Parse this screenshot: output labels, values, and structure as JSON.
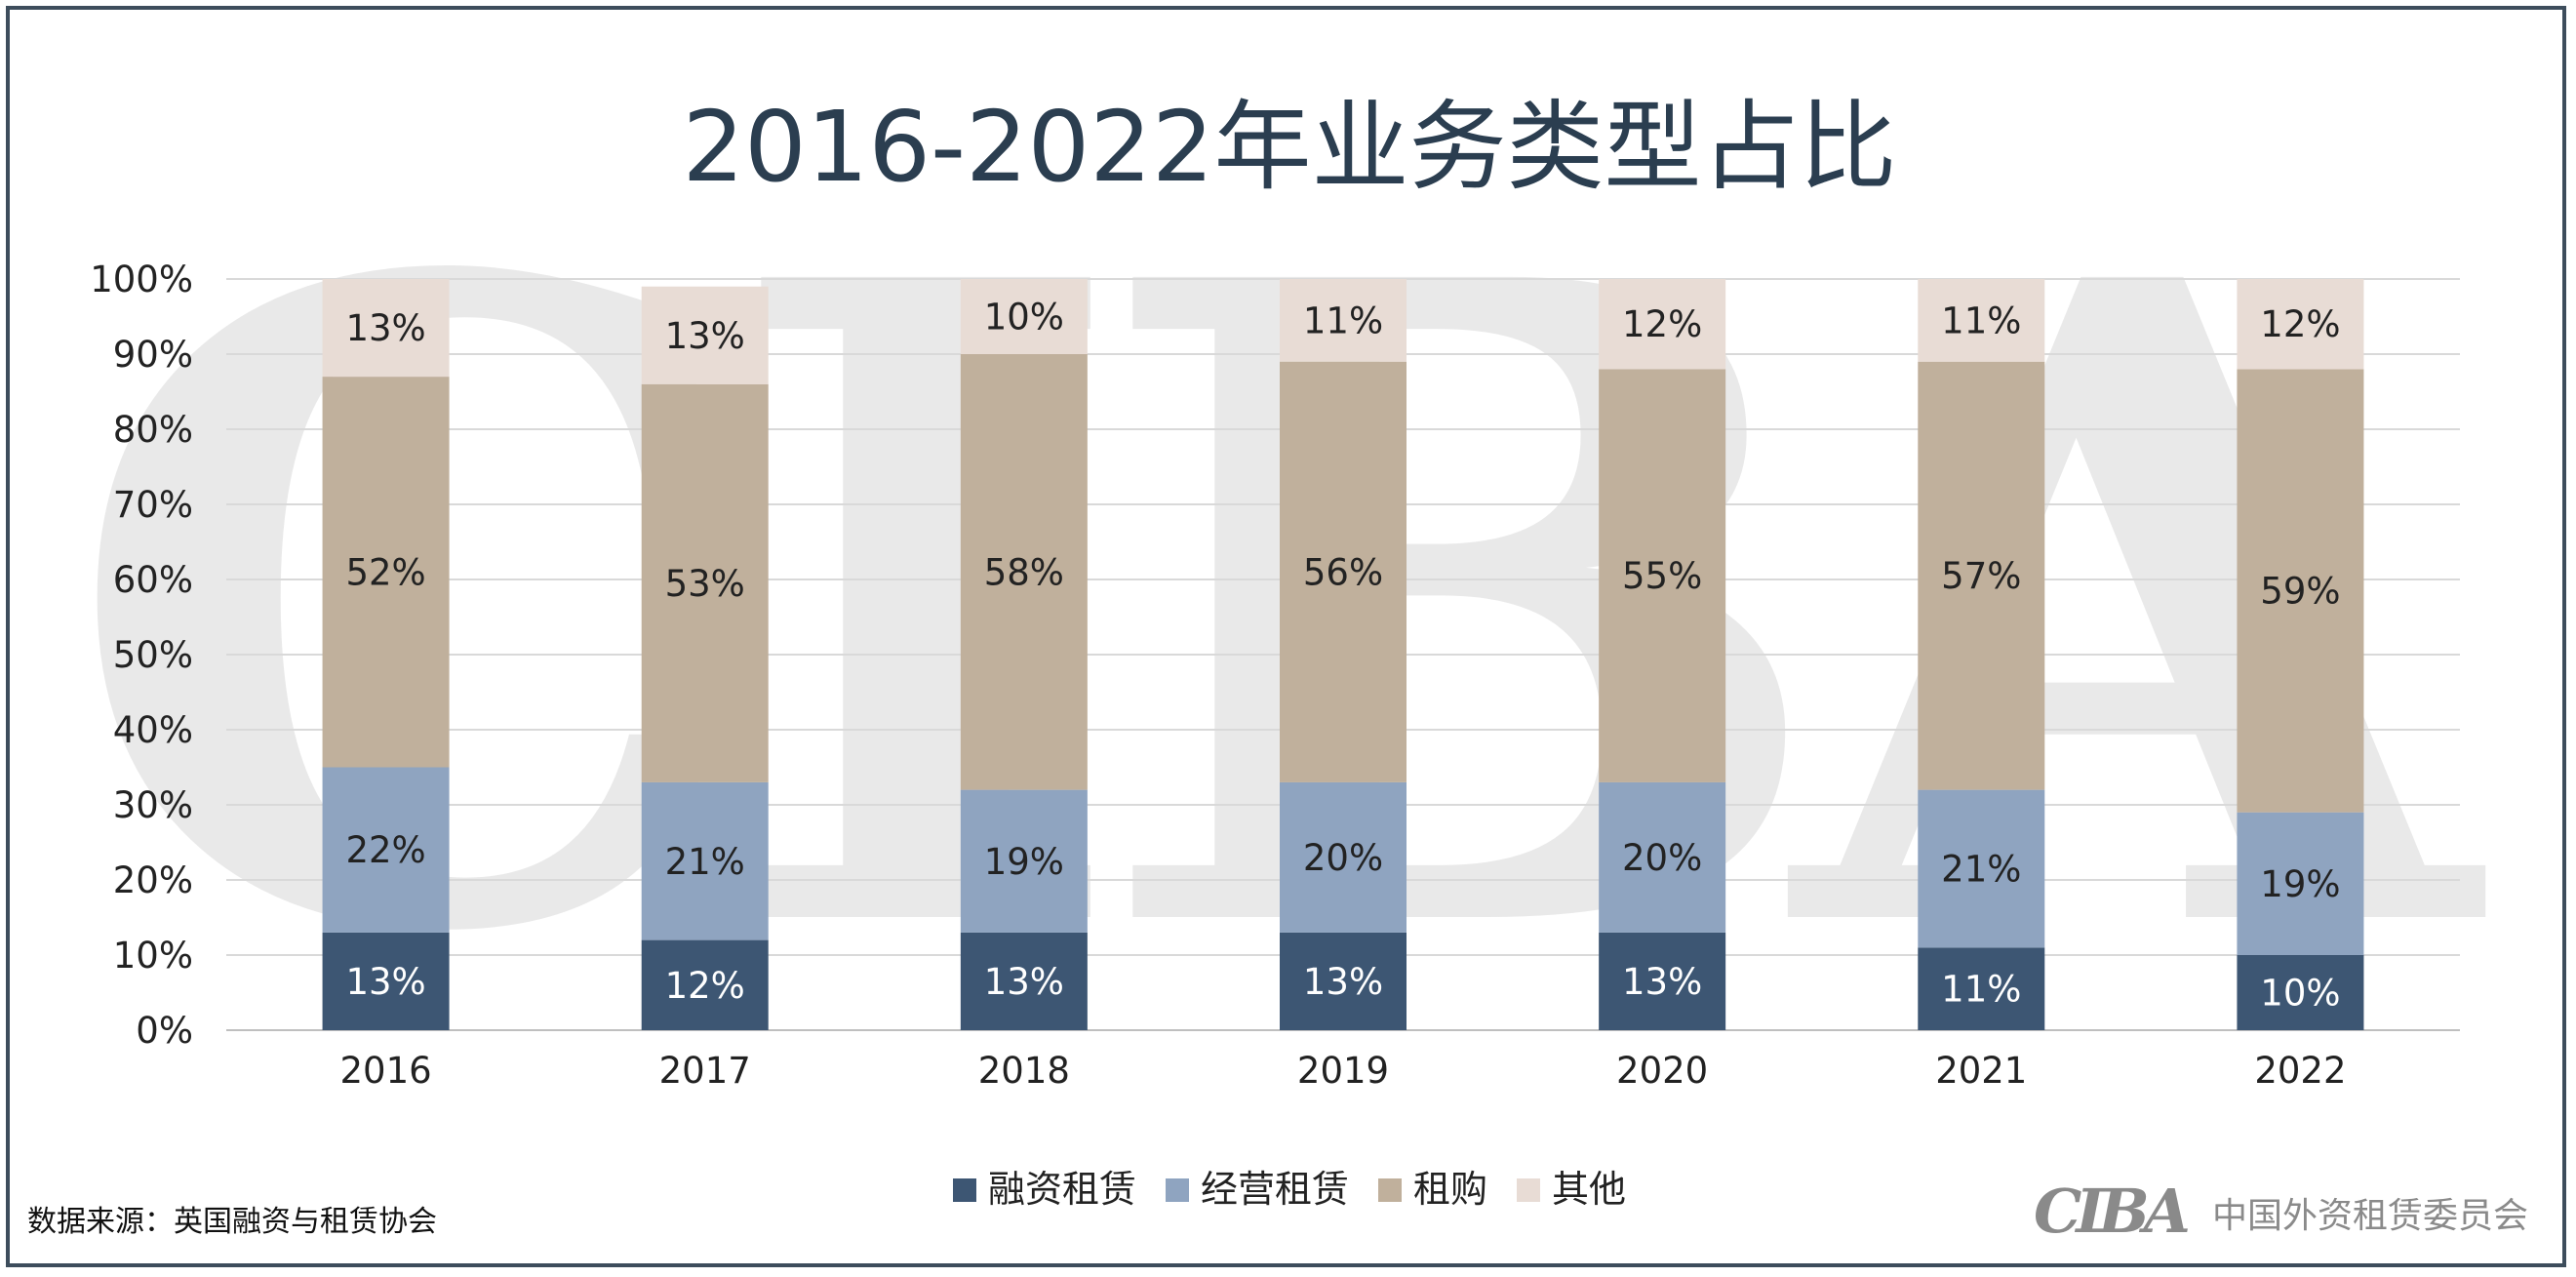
{
  "chart_data": {
    "type": "bar",
    "stacked": true,
    "title": "2016-2022年业务类型占比",
    "categories": [
      "2016",
      "2017",
      "2018",
      "2019",
      "2020",
      "2021",
      "2022"
    ],
    "series": [
      {
        "name": "融资租赁",
        "color": "#3d5673",
        "label_color": "#ffffff",
        "values": [
          13,
          12,
          13,
          13,
          13,
          11,
          10
        ],
        "labels": [
          "13%",
          "12%",
          "13%",
          "13%",
          "13%",
          "11%",
          "10%"
        ]
      },
      {
        "name": "经营租赁",
        "color": "#8fa4c0",
        "label_color": "#222222",
        "values": [
          22,
          21,
          19,
          20,
          20,
          21,
          19
        ],
        "labels": [
          "22%",
          "21%",
          "19%",
          "20%",
          "20%",
          "21%",
          "19%"
        ]
      },
      {
        "name": "租购",
        "color": "#c0b09c",
        "label_color": "#222222",
        "values": [
          52,
          53,
          58,
          56,
          55,
          57,
          59
        ],
        "labels": [
          "52%",
          "53%",
          "58%",
          "56%",
          "55%",
          "57%",
          "59%"
        ]
      },
      {
        "name": "其他",
        "color": "#e8dcd5",
        "label_color": "#222222",
        "values": [
          13,
          13,
          10,
          11,
          12,
          11,
          12
        ],
        "labels": [
          "13%",
          "13%",
          "10%",
          "11%",
          "12%",
          "11%",
          "12%"
        ]
      }
    ],
    "ylim": [
      0,
      100
    ],
    "yticks": [
      "0%",
      "10%",
      "20%",
      "30%",
      "40%",
      "50%",
      "60%",
      "70%",
      "80%",
      "90%",
      "100%"
    ],
    "grid": true,
    "legend_position": "bottom"
  },
  "source": "数据来源：英国融资与租赁协会",
  "watermark": "CIBA",
  "logo": {
    "mark": "CIBA",
    "text": "中国外资租赁委员会"
  }
}
